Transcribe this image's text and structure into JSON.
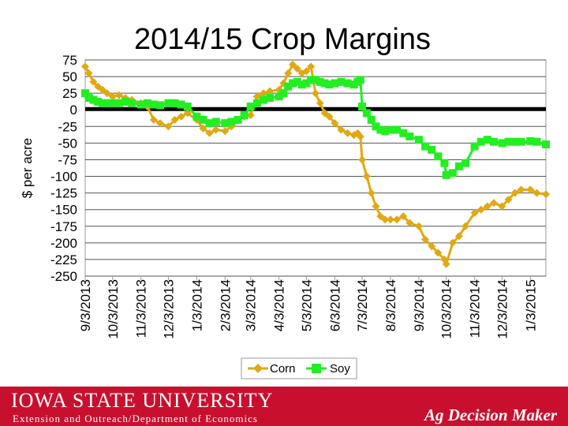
{
  "chart_data": {
    "type": "line",
    "title": "2014/15 Crop Margins",
    "xlabel": "",
    "ylabel": "$ per acre",
    "ylim": [
      -250,
      75
    ],
    "yticks": [
      75,
      50,
      25,
      0,
      -25,
      -50,
      -75,
      -100,
      -125,
      -150,
      -175,
      -200,
      -225,
      -250
    ],
    "ytick_labels": [
      "75",
      "50",
      "25",
      "0",
      "-25",
      "-50",
      "-75",
      "-100",
      "-125",
      "-150",
      "-175",
      "-200",
      "-225",
      "-250"
    ],
    "xlim": [
      "2013-09-03",
      "2015-01-20"
    ],
    "xticks": [
      "2013-09-03",
      "2013-10-03",
      "2013-11-03",
      "2013-12-03",
      "2014-01-03",
      "2014-02-03",
      "2014-03-03",
      "2014-04-03",
      "2014-05-03",
      "2014-06-03",
      "2014-07-03",
      "2014-08-03",
      "2014-09-03",
      "2014-10-03",
      "2014-11-03",
      "2014-12-03",
      "2015-01-03"
    ],
    "xtick_labels": [
      "9/3/2013",
      "10/3/2013",
      "11/3/2013",
      "12/3/2013",
      "1/3/2014",
      "2/3/2014",
      "3/3/2014",
      "4/3/2014",
      "5/3/2014",
      "6/3/2014",
      "7/3/2014",
      "8/3/2014",
      "9/3/2014",
      "10/3/2014",
      "11/3/2014",
      "12/3/2014",
      "1/3/2015"
    ],
    "grid": "horizontal",
    "legend_position": "bottom",
    "reference_line": 0,
    "series": [
      {
        "name": "Corn",
        "color": "#e0a812",
        "marker": "diamond",
        "x": [
          "2013-09-03",
          "2013-09-07",
          "2013-09-12",
          "2013-09-17",
          "2013-09-22",
          "2013-09-27",
          "2013-10-03",
          "2013-10-10",
          "2013-10-17",
          "2013-10-24",
          "2013-11-03",
          "2013-11-10",
          "2013-11-17",
          "2013-11-24",
          "2013-12-03",
          "2013-12-10",
          "2013-12-17",
          "2013-12-24",
          "2014-01-03",
          "2014-01-10",
          "2014-01-17",
          "2014-01-24",
          "2014-02-03",
          "2014-02-10",
          "2014-02-17",
          "2014-02-24",
          "2014-03-03",
          "2014-03-10",
          "2014-03-17",
          "2014-03-24",
          "2014-04-03",
          "2014-04-08",
          "2014-04-13",
          "2014-04-18",
          "2014-04-23",
          "2014-04-28",
          "2014-05-03",
          "2014-05-08",
          "2014-05-13",
          "2014-05-18",
          "2014-05-23",
          "2014-05-28",
          "2014-06-03",
          "2014-06-10",
          "2014-06-17",
          "2014-06-24",
          "2014-06-28",
          "2014-07-01",
          "2014-07-03",
          "2014-07-08",
          "2014-07-13",
          "2014-07-18",
          "2014-07-23",
          "2014-07-28",
          "2014-08-03",
          "2014-08-10",
          "2014-08-17",
          "2014-08-24",
          "2014-09-03",
          "2014-09-10",
          "2014-09-17",
          "2014-09-24",
          "2014-10-01",
          "2014-10-03",
          "2014-10-10",
          "2014-10-17",
          "2014-10-24",
          "2014-11-03",
          "2014-11-10",
          "2014-11-17",
          "2014-11-24",
          "2014-12-03",
          "2014-12-10",
          "2014-12-17",
          "2014-12-24",
          "2015-01-03",
          "2015-01-10",
          "2015-01-20"
        ],
        "y": [
          65,
          55,
          42,
          35,
          30,
          25,
          20,
          22,
          18,
          15,
          10,
          5,
          -15,
          -20,
          -25,
          -15,
          -10,
          -5,
          -15,
          -28,
          -35,
          -30,
          -32,
          -25,
          -15,
          -10,
          -8,
          20,
          25,
          28,
          30,
          40,
          55,
          68,
          62,
          55,
          58,
          65,
          25,
          10,
          -5,
          -10,
          -20,
          -30,
          -35,
          -38,
          -35,
          -40,
          -75,
          -100,
          -125,
          -145,
          -160,
          -165,
          -165,
          -165,
          -160,
          -170,
          -175,
          -195,
          -205,
          -215,
          -225,
          -232,
          -200,
          -190,
          -175,
          -155,
          -150,
          -145,
          -140,
          -145,
          -135,
          -125,
          -120,
          -120,
          -125,
          -127
        ]
      },
      {
        "name": "Soy",
        "color": "#22ee22",
        "marker": "square",
        "x": [
          "2013-09-03",
          "2013-09-07",
          "2013-09-12",
          "2013-09-17",
          "2013-09-22",
          "2013-09-27",
          "2013-10-03",
          "2013-10-10",
          "2013-10-17",
          "2013-10-24",
          "2013-11-03",
          "2013-11-10",
          "2013-11-17",
          "2013-11-24",
          "2013-12-03",
          "2013-12-10",
          "2013-12-17",
          "2013-12-24",
          "2014-01-03",
          "2014-01-10",
          "2014-01-17",
          "2014-01-24",
          "2014-02-03",
          "2014-02-10",
          "2014-02-17",
          "2014-02-24",
          "2014-03-03",
          "2014-03-10",
          "2014-03-17",
          "2014-03-24",
          "2014-04-03",
          "2014-04-08",
          "2014-04-13",
          "2014-04-18",
          "2014-04-23",
          "2014-04-28",
          "2014-05-03",
          "2014-05-08",
          "2014-05-13",
          "2014-05-18",
          "2014-05-23",
          "2014-05-28",
          "2014-06-03",
          "2014-06-10",
          "2014-06-17",
          "2014-06-24",
          "2014-06-28",
          "2014-07-01",
          "2014-07-03",
          "2014-07-08",
          "2014-07-13",
          "2014-07-18",
          "2014-07-23",
          "2014-07-28",
          "2014-08-03",
          "2014-08-10",
          "2014-08-17",
          "2014-08-24",
          "2014-09-03",
          "2014-09-10",
          "2014-09-17",
          "2014-09-24",
          "2014-10-01",
          "2014-10-03",
          "2014-10-10",
          "2014-10-17",
          "2014-10-24",
          "2014-11-03",
          "2014-11-10",
          "2014-11-17",
          "2014-11-24",
          "2014-12-03",
          "2014-12-10",
          "2014-12-17",
          "2014-12-24",
          "2015-01-03",
          "2015-01-10",
          "2015-01-20"
        ],
        "y": [
          25,
          18,
          15,
          12,
          10,
          10,
          10,
          10,
          12,
          10,
          8,
          10,
          8,
          7,
          10,
          10,
          8,
          5,
          -10,
          -15,
          -20,
          -18,
          -20,
          -18,
          -15,
          -8,
          5,
          10,
          15,
          18,
          20,
          25,
          35,
          40,
          42,
          38,
          40,
          45,
          45,
          42,
          40,
          38,
          40,
          42,
          40,
          38,
          42,
          45,
          5,
          -5,
          -15,
          -25,
          -30,
          -32,
          -30,
          -30,
          -35,
          -40,
          -45,
          -55,
          -60,
          -70,
          -80,
          -98,
          -95,
          -85,
          -80,
          -55,
          -48,
          -45,
          -48,
          -50,
          -48,
          -48,
          -48,
          -47,
          -48,
          -52
        ]
      }
    ]
  },
  "footer": {
    "university": "IOWA STATE UNIVERSITY",
    "department": "Extension and Outreach/Department of Economics",
    "brand": "Ag Decision Maker",
    "bar_color": "#c8102e"
  }
}
